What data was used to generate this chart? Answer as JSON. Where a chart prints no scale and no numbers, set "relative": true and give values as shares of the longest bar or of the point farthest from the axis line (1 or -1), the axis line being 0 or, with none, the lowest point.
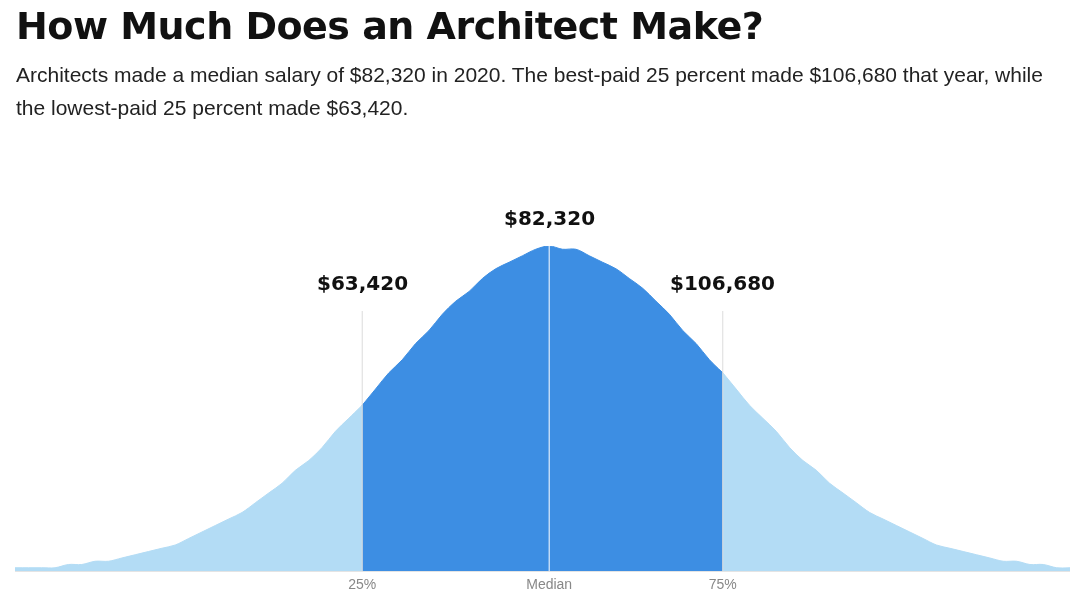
{
  "chart_data": {
    "type": "area",
    "title": "How Much Does an Architect Make?",
    "subtitle": "Architects made a median salary of $82,320 in 2020. The best-paid 25 percent made $106,680 that year, while the lowest-paid 25 percent made $63,420.",
    "relative": true,
    "grid": false,
    "categories": [
      null,
      null,
      null,
      null,
      null,
      null,
      null,
      null,
      null,
      null,
      null,
      null,
      null,
      null,
      null,
      null,
      null,
      null,
      null,
      null,
      null,
      null,
      null,
      null,
      null,
      null,
      "25%",
      null,
      null,
      null,
      null,
      null,
      null,
      null,
      null,
      null,
      null,
      null,
      null,
      null,
      "Median",
      null,
      null,
      null,
      null,
      null,
      null,
      null,
      null,
      null,
      null,
      null,
      null,
      "75%",
      null,
      null,
      null,
      null,
      null,
      null,
      null,
      null,
      null,
      null,
      null,
      null,
      null,
      null,
      null,
      null,
      null,
      null,
      null,
      null,
      null,
      null,
      null,
      null,
      null,
      null
    ],
    "series": [
      {
        "color": "#b3dcf5",
        "values": [
          0.01,
          0.01,
          0.01,
          0.01,
          0.02,
          0.02,
          0.03,
          0.03,
          0.04,
          0.05,
          0.06,
          0.07,
          0.08,
          0.1,
          0.12,
          0.14,
          0.16,
          0.18,
          0.21,
          0.24,
          0.27,
          0.31,
          0.34,
          0.38,
          0.43,
          0.47,
          0.51,
          null,
          null,
          null,
          null,
          null,
          null,
          null,
          null,
          null,
          null,
          null,
          null,
          null,
          null,
          null,
          null,
          null,
          null,
          null,
          null,
          null,
          null,
          null,
          null,
          null,
          null,
          null,
          null,
          null,
          null,
          null,
          null,
          null,
          null,
          null,
          null,
          null,
          null,
          null,
          null,
          null,
          null,
          null,
          null,
          null,
          null,
          null,
          null,
          null,
          null,
          null,
          null,
          null
        ]
      },
      {
        "color": "#3d8ee3",
        "values": [
          null,
          null,
          null,
          null,
          null,
          null,
          null,
          null,
          null,
          null,
          null,
          null,
          null,
          null,
          null,
          null,
          null,
          null,
          null,
          null,
          null,
          null,
          null,
          null,
          null,
          null,
          0.51,
          0.56,
          0.61,
          0.65,
          0.7,
          0.74,
          0.79,
          0.83,
          0.86,
          0.9,
          0.93,
          0.95,
          0.97,
          0.99,
          1,
          0.99,
          0.99,
          0.97,
          0.95,
          0.93,
          0.9,
          0.87,
          0.83,
          0.79,
          0.74,
          0.7,
          0.65,
          0.61,
          null,
          null,
          null,
          null,
          null,
          null,
          null,
          null,
          null,
          null,
          null,
          null,
          null,
          null,
          null,
          null,
          null,
          null,
          null,
          null,
          null,
          null,
          null,
          null,
          null,
          null
        ]
      },
      {
        "color": "#b3dcf5",
        "values": [
          null,
          null,
          null,
          null,
          null,
          null,
          null,
          null,
          null,
          null,
          null,
          null,
          null,
          null,
          null,
          null,
          null,
          null,
          null,
          null,
          null,
          null,
          null,
          null,
          null,
          null,
          null,
          null,
          null,
          null,
          null,
          null,
          null,
          null,
          null,
          null,
          null,
          null,
          null,
          null,
          null,
          null,
          null,
          null,
          null,
          null,
          null,
          null,
          null,
          null,
          null,
          null,
          null,
          0.61,
          0.56,
          0.51,
          0.47,
          0.43,
          0.38,
          0.34,
          0.31,
          0.27,
          0.24,
          0.21,
          0.18,
          0.16,
          0.14,
          0.12,
          0.1,
          0.08,
          0.07,
          0.06,
          0.05,
          0.04,
          0.03,
          0.03,
          0.02,
          0.02,
          0.01,
          0.01
        ]
      }
    ],
    "ref_lines": [
      {
        "axis": "x",
        "value": "25%",
        "label": "$63,420",
        "color": "#dcdcdc"
      },
      {
        "axis": "x",
        "value": "Median",
        "label": "$82,320",
        "color": "#ffffff"
      },
      {
        "axis": "x",
        "value": "75%",
        "label": "$106,680",
        "color": "#dcdcdc"
      }
    ]
  }
}
